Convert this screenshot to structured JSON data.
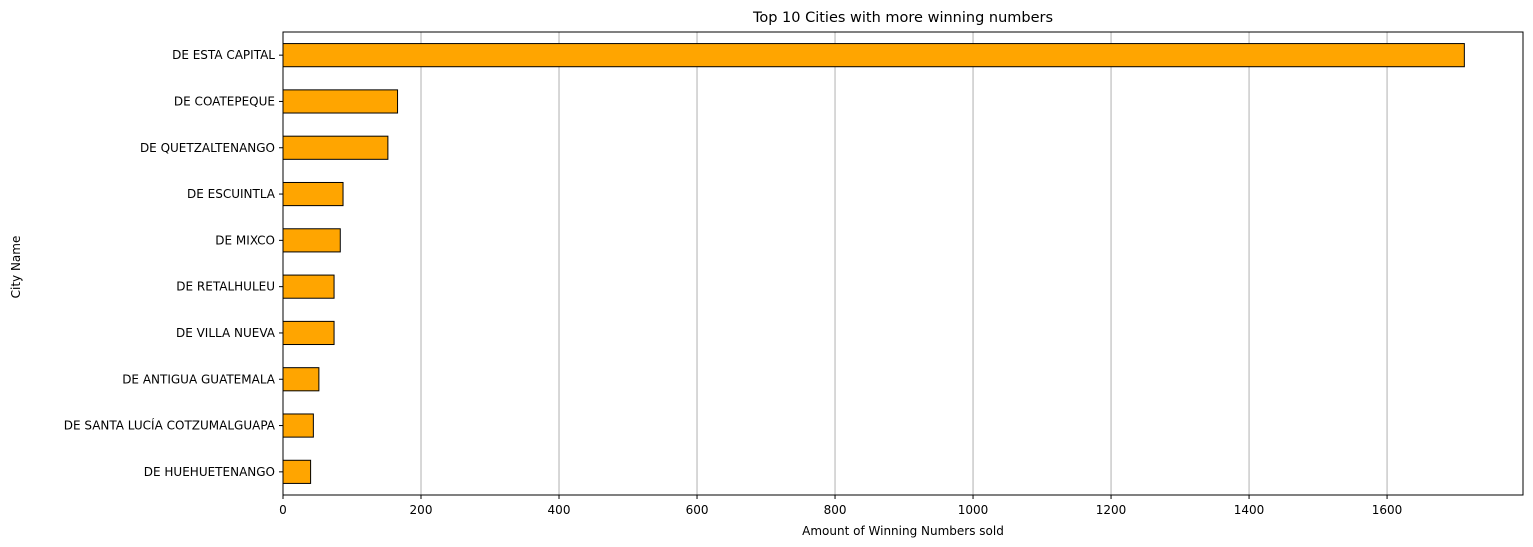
{
  "chart_data": {
    "type": "bar",
    "orientation": "horizontal",
    "title": "Top 10 Cities with more winning numbers",
    "xlabel": "Amount of Winning Numbers sold",
    "ylabel": "City Name",
    "categories": [
      "DE ESTA CAPITAL",
      "DE COATEPEQUE",
      "DE QUETZALTENANGO",
      "DE ESCUINTLA",
      "DE MIXCO",
      "DE RETALHULEU",
      "DE VILLA NUEVA",
      "DE ANTIGUA GUATEMALA",
      "DE SANTA LUCÍA COTZUMALGUAPA",
      "DE HUEHUETENANGO"
    ],
    "values": [
      1712,
      166,
      152,
      87,
      83,
      74,
      74,
      52,
      44,
      40
    ],
    "x_ticks": [
      0,
      200,
      400,
      600,
      800,
      1000,
      1200,
      1400,
      1600
    ],
    "xlim": [
      0,
      1797
    ],
    "grid": "x-axis",
    "bar_color": "#ffa500",
    "bar_edge_color": "#000000",
    "grid_color": "#b0b0b0"
  }
}
